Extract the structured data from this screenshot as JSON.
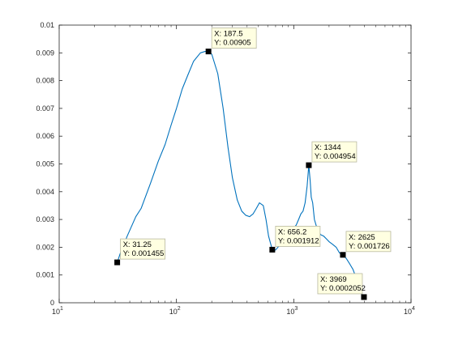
{
  "chart_data": {
    "type": "line",
    "x_scale": "log",
    "xlim": [
      10,
      10000
    ],
    "ylim": [
      0,
      0.01
    ],
    "grid": false,
    "line_color": "#0072bd",
    "marker_color": "#000000",
    "datatip_bg": "#ffffe1",
    "y_ticks": [
      {
        "value": 0,
        "label": "0"
      },
      {
        "value": 0.001,
        "label": "0.001"
      },
      {
        "value": 0.002,
        "label": "0.002"
      },
      {
        "value": 0.003,
        "label": "0.003"
      },
      {
        "value": 0.004,
        "label": "0.004"
      },
      {
        "value": 0.005,
        "label": "0.005"
      },
      {
        "value": 0.006,
        "label": "0.006"
      },
      {
        "value": 0.007,
        "label": "0.007"
      },
      {
        "value": 0.008,
        "label": "0.008"
      },
      {
        "value": 0.009,
        "label": "0.009"
      },
      {
        "value": 0.01,
        "label": "0.01"
      }
    ],
    "x_ticks": [
      {
        "value": 10,
        "base": "10",
        "exp": "1"
      },
      {
        "value": 100,
        "base": "10",
        "exp": "2"
      },
      {
        "value": 1000,
        "base": "10",
        "exp": "3"
      },
      {
        "value": 10000,
        "base": "10",
        "exp": "4"
      }
    ],
    "series": [
      {
        "points": [
          [
            31.25,
            0.00145
          ],
          [
            33,
            0.00175
          ],
          [
            38,
            0.0024
          ],
          [
            45,
            0.0031
          ],
          [
            50,
            0.0034
          ],
          [
            60,
            0.0043
          ],
          [
            70,
            0.0051
          ],
          [
            80,
            0.0057
          ],
          [
            90,
            0.0064
          ],
          [
            100,
            0.007
          ],
          [
            112,
            0.0077
          ],
          [
            125,
            0.0082
          ],
          [
            140,
            0.0087
          ],
          [
            160,
            0.009
          ],
          [
            175,
            0.00905
          ],
          [
            187.5,
            0.00905
          ],
          [
            200,
            0.00895
          ],
          [
            225,
            0.00825
          ],
          [
            250,
            0.007
          ],
          [
            275,
            0.0056
          ],
          [
            300,
            0.0045
          ],
          [
            330,
            0.0037
          ],
          [
            360,
            0.0033
          ],
          [
            390,
            0.00315
          ],
          [
            420,
            0.0031
          ],
          [
            450,
            0.0032
          ],
          [
            480,
            0.0034
          ],
          [
            510,
            0.0036
          ],
          [
            550,
            0.0035
          ],
          [
            580,
            0.003
          ],
          [
            610,
            0.0024
          ],
          [
            656.2,
            0.00191
          ],
          [
            700,
            0.0019
          ],
          [
            750,
            0.00205
          ],
          [
            800,
            0.0022
          ],
          [
            850,
            0.0024
          ],
          [
            900,
            0.0025
          ],
          [
            950,
            0.0026
          ],
          [
            1000,
            0.0027
          ],
          [
            1050,
            0.0028
          ],
          [
            1100,
            0.003
          ],
          [
            1150,
            0.0032
          ],
          [
            1200,
            0.0033
          ],
          [
            1250,
            0.0036
          ],
          [
            1300,
            0.0042
          ],
          [
            1344,
            0.004954
          ],
          [
            1380,
            0.0044
          ],
          [
            1410,
            0.0038
          ],
          [
            1450,
            0.0036
          ],
          [
            1500,
            0.003
          ],
          [
            1600,
            0.0026
          ],
          [
            1700,
            0.00245
          ],
          [
            1800,
            0.0024
          ],
          [
            1900,
            0.0023
          ],
          [
            2000,
            0.0022
          ],
          [
            2150,
            0.0021
          ],
          [
            2300,
            0.002
          ],
          [
            2450,
            0.0018
          ],
          [
            2625,
            0.001726
          ],
          [
            2800,
            0.0016
          ],
          [
            3000,
            0.0014
          ],
          [
            3200,
            0.0012
          ],
          [
            3400,
            0.0009
          ],
          [
            3600,
            0.0006
          ],
          [
            3800,
            0.0003
          ],
          [
            3969,
            0.0002052
          ]
        ]
      }
    ],
    "datatips": [
      {
        "x": 31.25,
        "y": 0.001455,
        "xlabel": "X: 31.25",
        "ylabel": "Y: 0.001455",
        "side": "right"
      },
      {
        "x": 187.5,
        "y": 0.00905,
        "xlabel": "X: 187.5",
        "ylabel": "Y: 0.00905",
        "side": "right"
      },
      {
        "x": 1344,
        "y": 0.004954,
        "xlabel": "X: 1344",
        "ylabel": "Y: 0.004954",
        "side": "right"
      },
      {
        "x": 656.2,
        "y": 0.001912,
        "xlabel": "X: 656.2",
        "ylabel": "Y: 0.001912",
        "side": "right"
      },
      {
        "x": 2625,
        "y": 0.001726,
        "xlabel": "X: 2625",
        "ylabel": "Y: 0.001726",
        "side": "right"
      },
      {
        "x": 3969,
        "y": 0.0002052,
        "xlabel": "X: 3969",
        "ylabel": "Y: 0.0002052",
        "side": "left"
      }
    ]
  }
}
